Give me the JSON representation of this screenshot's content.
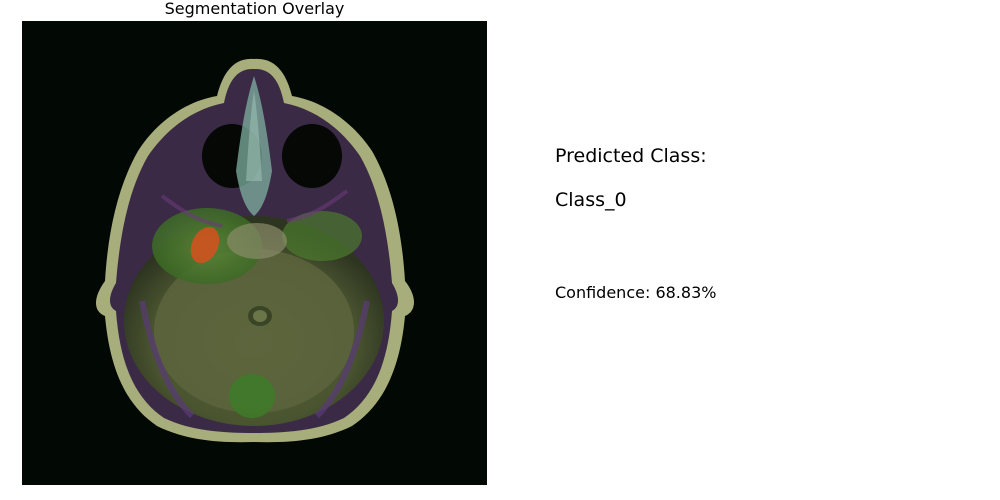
{
  "panel": {
    "title": "Segmentation Overlay"
  },
  "prediction": {
    "label": "Predicted Class:",
    "value": "Class_0",
    "confidence_text": "Confidence: 68.83%",
    "confidence_percent": 68.83
  },
  "colors": {
    "background": "#ffffff",
    "image_background": "#020803",
    "overlay_green": "#3f7a2a",
    "overlay_orange": "#d0521f"
  }
}
